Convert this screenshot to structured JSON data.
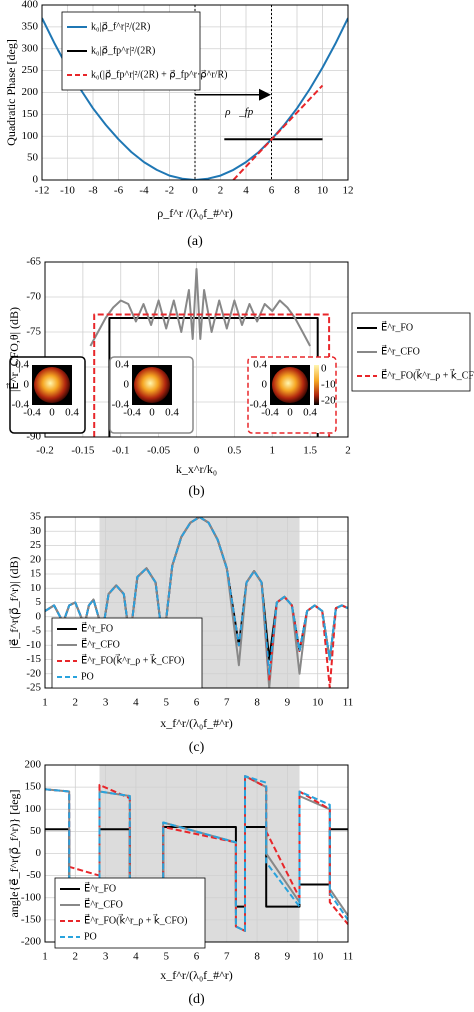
{
  "chart_data": [
    {
      "type": "line",
      "caption": "(a)",
      "ylabel": "Quadratic Phase [deg]",
      "xlabel": "ρ_f^r /(λ₀f_#^r)",
      "xlim": [
        -12,
        12
      ],
      "xticks": [
        -12,
        -10,
        -8,
        -6,
        -4,
        -2,
        0,
        2,
        4,
        6,
        8,
        10,
        12
      ],
      "ylim": [
        0,
        400
      ],
      "yticks": [
        0,
        50,
        100,
        150,
        200,
        250,
        300,
        350,
        400
      ],
      "grid": true,
      "legend": "upper left",
      "vlines": [
        0,
        6
      ],
      "annotation": {
        "text": "ρ⃗_fp",
        "x": [
          0,
          6
        ],
        "y": 195
      },
      "series": [
        {
          "name": "k₀|ρ⃗_f^r|²/(2R)",
          "color": "#1f77b4",
          "x": [
            -12,
            -11,
            -10,
            -9,
            -8,
            -7,
            -6,
            -5,
            -4,
            -3,
            -2,
            -1,
            0,
            1,
            2,
            3,
            4,
            5,
            6,
            7,
            8,
            9,
            10,
            11,
            12
          ],
          "values": [
            370,
            311,
            257,
            208,
            164,
            126,
            93,
            64,
            41,
            23,
            10,
            3,
            0,
            3,
            10,
            23,
            41,
            64,
            93,
            126,
            164,
            208,
            257,
            311,
            370
          ]
        },
        {
          "name": "k₀|ρ⃗_fp^r|²/(2R)",
          "color": "#000000",
          "x": [
            2.3,
            10
          ],
          "values": [
            93,
            93
          ]
        },
        {
          "name": "k₀(|ρ⃗_fp^r|²/(2R) + ρ⃗_fp^r·ρ⃗^r/R)",
          "color": "#e8262a",
          "dash": true,
          "x": [
            3,
            10
          ],
          "values": [
            0,
            216
          ]
        }
      ]
    },
    {
      "type": "line",
      "caption": "(b)",
      "ylabel": "|E⃗^r_CFO,θ| (dB)",
      "xlabel": "k_x^r/k₀",
      "xlim": [
        -0.2,
        0.2
      ],
      "xticks": [
        -0.2,
        -0.15,
        -0.1,
        -0.05,
        0,
        {
          "value": 0.05,
          "label": "0.5"
        },
        {
          "value": 0.1,
          "label": "1"
        },
        {
          "value": 0.15,
          "label": "1.5"
        },
        {
          "value": 0.2,
          "label": "2"
        }
      ],
      "ylim": [
        -90,
        -65
      ],
      "yticks": [
        -90,
        -85,
        -80,
        -75,
        -70,
        -65
      ],
      "grid": true,
      "legend": "outside right",
      "series": [
        {
          "name": "E⃗^r_FO",
          "color": "#000000",
          "x": [
            -0.115,
            -0.115,
            0.16,
            0.16
          ],
          "values": [
            -90,
            -73,
            -73,
            -90
          ]
        },
        {
          "name": "E⃗^r_CFO",
          "color": "#888888",
          "x": [
            -0.14,
            -0.13,
            -0.12,
            -0.11,
            -0.1,
            -0.09,
            -0.08,
            -0.07,
            -0.06,
            -0.05,
            -0.04,
            -0.03,
            -0.02,
            -0.01,
            -0.005,
            0,
            0.005,
            0.01,
            0.02,
            0.03,
            0.04,
            0.05,
            0.06,
            0.07,
            0.08,
            0.09,
            0.1,
            0.11,
            0.12,
            0.13,
            0.14,
            0.15
          ],
          "values": [
            -77,
            -75,
            -73,
            -71.5,
            -70.5,
            -71,
            -73.5,
            -71,
            -74,
            -70.5,
            -74.5,
            -70.5,
            -75,
            -69,
            -76,
            -66,
            -76,
            -69,
            -75,
            -70.5,
            -74.5,
            -70.5,
            -74,
            -71,
            -73.5,
            -71,
            -72,
            -70.5,
            -71.5,
            -73,
            -75,
            -77
          ]
        },
        {
          "name": "E⃗^r_FO(k⃗^r_ρ + k⃗_CFO)",
          "color": "#e8262a",
          "dash": true,
          "x": [
            -0.135,
            -0.135,
            0.175,
            0.175
          ],
          "values": [
            -90,
            -72.5,
            -72.5,
            -90
          ]
        }
      ],
      "insets": [
        {
          "color": "#000000",
          "ticks": [
            -0.4,
            0,
            0.4
          ]
        },
        {
          "color": "#888888",
          "ticks": [
            -0.4,
            0,
            0.4
          ]
        },
        {
          "color": "#e8262a",
          "dash": true,
          "ticks": [
            -0.4,
            0,
            0.4
          ],
          "colorbar": [
            0,
            -10,
            -20
          ]
        }
      ]
    },
    {
      "type": "line",
      "caption": "(c)",
      "ylabel": "|e⃗_f^r(ρ⃗_f^r)| (dB)",
      "xlabel": "x_f^r/(λ₀f_#^r)",
      "xlim": [
        1,
        11
      ],
      "xticks": [
        1,
        2,
        3,
        4,
        5,
        6,
        7,
        8,
        9,
        10,
        11
      ],
      "ylim": [
        -25,
        35
      ],
      "yticks": [
        -25,
        -20,
        -15,
        -10,
        -5,
        0,
        5,
        10,
        15,
        20,
        25,
        30,
        35
      ],
      "grid": true,
      "legend": "lower left",
      "shade": [
        2.8,
        9.4
      ],
      "x": [
        1,
        1.3,
        1.6,
        1.8,
        2.0,
        2.3,
        2.45,
        2.6,
        2.9,
        3.1,
        3.35,
        3.6,
        3.8,
        4.05,
        4.35,
        4.65,
        4.9,
        5.2,
        5.5,
        5.8,
        6.1,
        6.4,
        6.7,
        7.0,
        7.4,
        7.65,
        7.9,
        8.15,
        8.4,
        8.65,
        8.9,
        9.15,
        9.4,
        9.65,
        9.9,
        10.15,
        10.4,
        10.6,
        10.8,
        11
      ],
      "series": [
        {
          "name": "E⃗^r_FO",
          "color": "#000000",
          "values": [
            2,
            4,
            -2,
            4,
            5,
            -3,
            4,
            6,
            -5,
            8,
            11,
            8,
            -8,
            14,
            17,
            12,
            -10,
            18,
            28,
            33,
            35,
            33,
            27,
            17,
            -10,
            12,
            16,
            12,
            -15,
            5,
            7,
            4,
            -12,
            2,
            4,
            2,
            -15,
            3,
            4,
            3
          ]
        },
        {
          "name": "E⃗^r_CFO",
          "color": "#888888",
          "values": [
            2,
            4,
            -2,
            4,
            5,
            -3,
            4,
            6,
            -5,
            8,
            11,
            8,
            -8,
            14,
            17,
            12,
            -10,
            18,
            28,
            33,
            35,
            33,
            27,
            17,
            -17,
            12,
            16,
            12,
            -25,
            5,
            7,
            4,
            -20,
            2,
            4,
            2,
            -15,
            3,
            4,
            3
          ]
        },
        {
          "name": "E⃗^r_FO(k⃗^r_ρ + k⃗_CFO)",
          "color": "#e8262a",
          "dash": true,
          "values": [
            2,
            4,
            -2,
            4,
            5,
            -3,
            4,
            6,
            -5,
            8,
            11,
            8,
            -8,
            14,
            17,
            12,
            -10,
            18,
            28,
            33,
            35,
            33,
            27,
            17,
            -10,
            12,
            16,
            12,
            -22,
            5,
            7,
            4,
            -12,
            2,
            4,
            2,
            -25,
            3,
            4,
            3
          ]
        },
        {
          "name": "PO",
          "color": "#29a3dd",
          "dash": true,
          "values": [
            2,
            4,
            -2,
            4,
            5,
            -3,
            4,
            6,
            -5,
            8,
            11,
            8,
            -8,
            14,
            17,
            12,
            -10,
            18,
            28,
            33,
            35,
            33,
            27,
            17,
            -10,
            12,
            16,
            12,
            -20,
            5,
            7,
            4,
            -12,
            2,
            4,
            2,
            -15,
            3,
            4,
            3
          ]
        }
      ]
    },
    {
      "type": "line",
      "caption": "(d)",
      "ylabel": "angle{e⃗_f^r(ρ⃗_f^r)} [deg]",
      "xlabel": "x_f^r/(λ₀f_#^r)",
      "xlim": [
        1,
        11
      ],
      "xticks": [
        1,
        2,
        3,
        4,
        5,
        6,
        7,
        8,
        9,
        10,
        11
      ],
      "ylim": [
        -200,
        200
      ],
      "yticks": [
        -200,
        -150,
        -100,
        -50,
        0,
        50,
        100,
        150,
        200
      ],
      "grid": true,
      "legend": "lower left",
      "shade": [
        2.8,
        9.4
      ],
      "x": [
        1,
        1.8,
        1.8,
        2.8,
        2.8,
        3.8,
        3.8,
        4.9,
        4.9,
        7.3,
        7.3,
        7.6,
        7.6,
        8.3,
        8.3,
        9.4,
        9.4,
        10.4,
        10.4,
        11
      ],
      "series": [
        {
          "name": "E⃗^r_FO",
          "color": "#000000",
          "values": [
            55,
            55,
            -125,
            -125,
            55,
            55,
            -125,
            -125,
            60,
            60,
            -120,
            -120,
            60,
            60,
            -120,
            -120,
            -70,
            -70,
            55,
            55
          ]
        },
        {
          "name": "E⃗^r_CFO",
          "color": "#888888",
          "values": [
            145,
            140,
            -180,
            -185,
            140,
            130,
            -185,
            -190,
            70,
            25,
            -165,
            -175,
            175,
            150,
            0,
            -110,
            130,
            100,
            -80,
            -140
          ]
        },
        {
          "name": "E⃗^r_FO(k⃗^r_ρ + k⃗_CFO)",
          "color": "#e8262a",
          "dash": true,
          "values": [
            145,
            140,
            -30,
            -50,
            155,
            125,
            -185,
            -190,
            60,
            25,
            -165,
            -175,
            175,
            150,
            50,
            -100,
            140,
            100,
            -110,
            -160
          ]
        },
        {
          "name": "PO",
          "color": "#29a3dd",
          "dash": true,
          "values": [
            145,
            140,
            -180,
            -185,
            140,
            130,
            -185,
            -190,
            70,
            25,
            -165,
            -175,
            175,
            160,
            -20,
            -120,
            140,
            110,
            -90,
            -150
          ]
        }
      ]
    }
  ]
}
